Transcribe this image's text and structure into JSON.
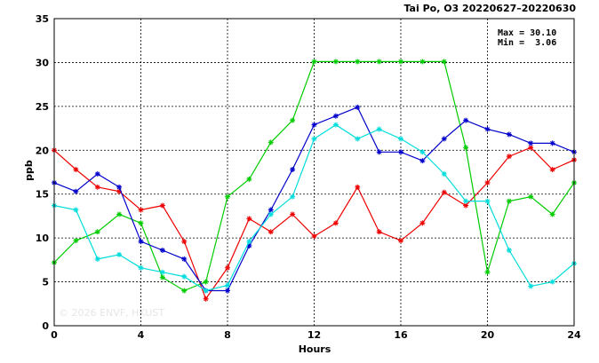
{
  "chart_data": {
    "type": "line",
    "title": "Tai Po, O3 20220627–20220630",
    "xlabel": "Hours",
    "ylabel": "ppb",
    "xlim": [
      0,
      24
    ],
    "ylim": [
      0,
      35
    ],
    "x_ticks": [
      0,
      4,
      8,
      12,
      16,
      20,
      24
    ],
    "y_ticks": [
      0,
      5,
      10,
      15,
      20,
      25,
      30,
      35
    ],
    "grid": true,
    "annotations": {
      "max_text": "Max = 30.10",
      "min_text": "Min =  3.06"
    },
    "watermark": "© 2026  ENVF, HKUST",
    "x": [
      0,
      1,
      2,
      3,
      4,
      5,
      6,
      7,
      8,
      9,
      10,
      11,
      12,
      13,
      14,
      15,
      16,
      17,
      18,
      19,
      20,
      21,
      22,
      23,
      24
    ],
    "series": [
      {
        "color": "#ee0000",
        "values": [
          20.0,
          17.8,
          15.8,
          15.3,
          13.2,
          13.7,
          9.6,
          3.06,
          6.6,
          12.2,
          10.7,
          12.7,
          10.2,
          11.7,
          15.8,
          10.7,
          9.7,
          11.7,
          15.2,
          13.7,
          16.3,
          19.3,
          20.3,
          17.8,
          18.9
        ]
      },
      {
        "color": "#00cc00",
        "values": [
          7.2,
          9.7,
          10.7,
          12.7,
          11.7,
          5.5,
          4.0,
          5.0,
          14.7,
          16.7,
          20.9,
          23.4,
          30.1,
          30.1,
          30.1,
          30.1,
          30.1,
          30.1,
          30.1,
          20.3,
          6.1,
          14.2,
          14.7,
          12.7,
          16.3
        ]
      },
      {
        "color": "#0000cc",
        "values": [
          16.3,
          15.3,
          17.3,
          15.8,
          9.6,
          8.6,
          7.6,
          4.0,
          4.0,
          9.1,
          13.2,
          17.8,
          22.9,
          23.9,
          24.9,
          19.8,
          19.8,
          18.8,
          21.3,
          23.4,
          22.4,
          21.8,
          20.8,
          20.8,
          19.8
        ]
      },
      {
        "color": "#00dddd",
        "values": [
          13.7,
          13.2,
          7.6,
          8.1,
          6.6,
          6.1,
          5.6,
          4.0,
          4.6,
          9.6,
          12.7,
          14.7,
          21.3,
          22.9,
          21.3,
          22.4,
          21.3,
          19.8,
          17.3,
          14.2,
          14.2,
          8.6,
          4.5,
          5.0,
          7.1
        ]
      }
    ]
  }
}
